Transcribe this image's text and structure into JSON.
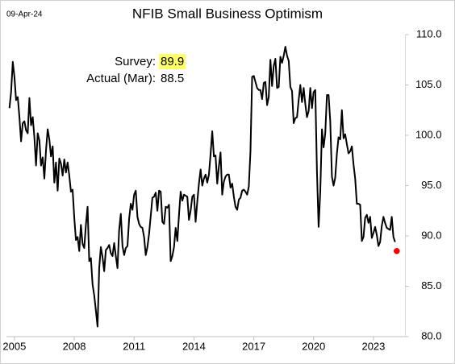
{
  "chart_data": {
    "type": "line",
    "title": "NFIB Small Business Optimism",
    "date_label": "09-Apr-24",
    "annotations": [
      {
        "label": "Survey:",
        "value": 89.9,
        "highlight": "#ffff66"
      },
      {
        "label": "Actual (Mar):",
        "value": 88.5
      }
    ],
    "xlim": [
      2004.6,
      2024.6
    ],
    "xticks": [
      2005,
      2008,
      2011,
      2014,
      2017,
      2020,
      2023
    ],
    "ylim": [
      80,
      110
    ],
    "yticks": [
      {
        "value": 80,
        "label": "80.0"
      },
      {
        "value": 85,
        "label": "85.0"
      },
      {
        "value": 90,
        "label": "90.0"
      },
      {
        "value": 95,
        "label": "95.0"
      },
      {
        "value": 100,
        "label": "100.0"
      },
      {
        "value": 105,
        "label": "105.0"
      },
      {
        "value": 110,
        "label": "110.0"
      }
    ],
    "y_axis_side": "right",
    "grid": false,
    "series": [
      {
        "color": "#000000",
        "marker": "none",
        "x": [
          2004.75,
          2004.833,
          2004.917,
          2005,
          2005.083,
          2005.167,
          2005.25,
          2005.333,
          2005.417,
          2005.5,
          2005.583,
          2005.667,
          2005.75,
          2005.833,
          2005.917,
          2006,
          2006.083,
          2006.167,
          2006.25,
          2006.333,
          2006.417,
          2006.5,
          2006.583,
          2006.667,
          2006.75,
          2006.833,
          2006.917,
          2007,
          2007.083,
          2007.167,
          2007.25,
          2007.333,
          2007.417,
          2007.5,
          2007.583,
          2007.667,
          2007.75,
          2007.833,
          2007.917,
          2008,
          2008.083,
          2008.167,
          2008.25,
          2008.333,
          2008.417,
          2008.5,
          2008.583,
          2008.667,
          2008.75,
          2008.833,
          2008.917,
          2009,
          2009.083,
          2009.167,
          2009.25,
          2009.333,
          2009.417,
          2009.5,
          2009.583,
          2009.667,
          2009.75,
          2009.833,
          2009.917,
          2010,
          2010.083,
          2010.167,
          2010.25,
          2010.333,
          2010.417,
          2010.5,
          2010.583,
          2010.667,
          2010.75,
          2010.833,
          2010.917,
          2011,
          2011.083,
          2011.167,
          2011.25,
          2011.333,
          2011.417,
          2011.5,
          2011.583,
          2011.667,
          2011.75,
          2011.833,
          2011.917,
          2012,
          2012.083,
          2012.167,
          2012.25,
          2012.333,
          2012.417,
          2012.5,
          2012.583,
          2012.667,
          2012.75,
          2012.833,
          2012.917,
          2013,
          2013.083,
          2013.167,
          2013.25,
          2013.333,
          2013.417,
          2013.5,
          2013.583,
          2013.667,
          2013.75,
          2013.833,
          2013.917,
          2014,
          2014.083,
          2014.167,
          2014.25,
          2014.333,
          2014.417,
          2014.5,
          2014.583,
          2014.667,
          2014.75,
          2014.833,
          2014.917,
          2015,
          2015.083,
          2015.167,
          2015.25,
          2015.333,
          2015.417,
          2015.5,
          2015.583,
          2015.667,
          2015.75,
          2015.833,
          2015.917,
          2016,
          2016.083,
          2016.167,
          2016.25,
          2016.333,
          2016.417,
          2016.5,
          2016.583,
          2016.667,
          2016.75,
          2016.833,
          2016.917,
          2017,
          2017.083,
          2017.167,
          2017.25,
          2017.333,
          2017.417,
          2017.5,
          2017.583,
          2017.667,
          2017.75,
          2017.833,
          2017.917,
          2018,
          2018.083,
          2018.167,
          2018.25,
          2018.333,
          2018.417,
          2018.5,
          2018.583,
          2018.667,
          2018.75,
          2018.833,
          2018.917,
          2019,
          2019.083,
          2019.167,
          2019.25,
          2019.333,
          2019.417,
          2019.5,
          2019.583,
          2019.667,
          2019.75,
          2019.833,
          2019.917,
          2020,
          2020.083,
          2020.167,
          2020.25,
          2020.333,
          2020.417,
          2020.5,
          2020.583,
          2020.667,
          2020.75,
          2020.833,
          2020.917,
          2021,
          2021.083,
          2021.167,
          2021.25,
          2021.333,
          2021.417,
          2021.5,
          2021.583,
          2021.667,
          2021.75,
          2021.833,
          2021.917,
          2022,
          2022.083,
          2022.167,
          2022.25,
          2022.333,
          2022.417,
          2022.5,
          2022.583,
          2022.667,
          2022.75,
          2022.833,
          2022.917,
          2023,
          2023.083,
          2023.167,
          2023.25,
          2023.333,
          2023.417,
          2023.5,
          2023.583,
          2023.667,
          2023.75,
          2023.833,
          2023.917,
          2024,
          2024.083
        ],
        "values": [
          102.7,
          104.3,
          107.3,
          105.8,
          103.5,
          103.8,
          101.8,
          99.4,
          101.2,
          101.4,
          100.5,
          100.2,
          103.7,
          101.0,
          101.8,
          99.8,
          97.0,
          100.2,
          99.5,
          97.0,
          97.8,
          95.7,
          98.5,
          100.6,
          99.6,
          97.9,
          98.9,
          95.3,
          97.3,
          94.5,
          97.7,
          97.2,
          96.0,
          97.6,
          96.3,
          97.3,
          96.0,
          94.4,
          94.6,
          91.8,
          89.6,
          89.9,
          88.5,
          91.1,
          89.2,
          88.8,
          91.1,
          92.9,
          87.5,
          87.8,
          85.2,
          84.1,
          82.6,
          81.0,
          86.8,
          88.9,
          87.9,
          86.5,
          88.6,
          88.8,
          89.1,
          88.3,
          88.0,
          89.3,
          88.0,
          86.8,
          90.6,
          92.2,
          89.0,
          88.1,
          88.8,
          89.0,
          91.7,
          93.2,
          92.6,
          94.1,
          94.5,
          91.9,
          91.2,
          90.9,
          90.8,
          89.9,
          88.1,
          88.9,
          90.2,
          92.0,
          93.8,
          93.9,
          94.3,
          92.5,
          94.5,
          94.4,
          91.4,
          91.2,
          92.9,
          92.8,
          93.1,
          87.5,
          88.0,
          88.9,
          90.8,
          89.5,
          92.1,
          94.4,
          93.5,
          94.1,
          94.0,
          93.9,
          91.6,
          92.5,
          93.9,
          94.1,
          91.4,
          93.4,
          95.2,
          96.6,
          95.0,
          95.7,
          96.1,
          95.3,
          96.1,
          98.1,
          100.4,
          97.9,
          98.0,
          95.2,
          96.9,
          98.3,
          94.1,
          95.4,
          95.9,
          96.1,
          96.1,
          94.8,
          95.2,
          93.9,
          92.9,
          92.6,
          93.6,
          93.8,
          94.5,
          94.6,
          94.4,
          94.1,
          94.9,
          98.4,
          105.8,
          105.9,
          105.3,
          104.7,
          104.5,
          104.5,
          103.6,
          105.2,
          105.3,
          103.0,
          103.8,
          107.5,
          104.9,
          106.9,
          107.6,
          104.7,
          104.8,
          107.8,
          107.2,
          107.9,
          108.8,
          107.9,
          107.4,
          104.8,
          104.4,
          101.2,
          101.7,
          101.8,
          103.5,
          105.0,
          103.3,
          104.7,
          103.1,
          101.8,
          102.4,
          104.7,
          102.7,
          104.3,
          104.5,
          96.4,
          90.9,
          94.4,
          100.6,
          98.8,
          100.2,
          104.0,
          104.0,
          101.4,
          95.9,
          95.0,
          95.8,
          98.2,
          99.8,
          99.6,
          102.5,
          99.7,
          100.1,
          99.1,
          98.2,
          98.4,
          98.9,
          97.1,
          95.7,
          93.2,
          93.2,
          93.1,
          89.5,
          89.9,
          91.8,
          92.1,
          91.3,
          91.9,
          89.8,
          90.3,
          90.9,
          90.1,
          89.0,
          89.4,
          91.0,
          91.9,
          91.3,
          90.8,
          90.7,
          90.6,
          91.9,
          89.9,
          89.4
        ]
      },
      {
        "color": "#ff0000",
        "marker": "dot",
        "x": [
          2024.167
        ],
        "values": [
          88.5
        ]
      }
    ]
  }
}
